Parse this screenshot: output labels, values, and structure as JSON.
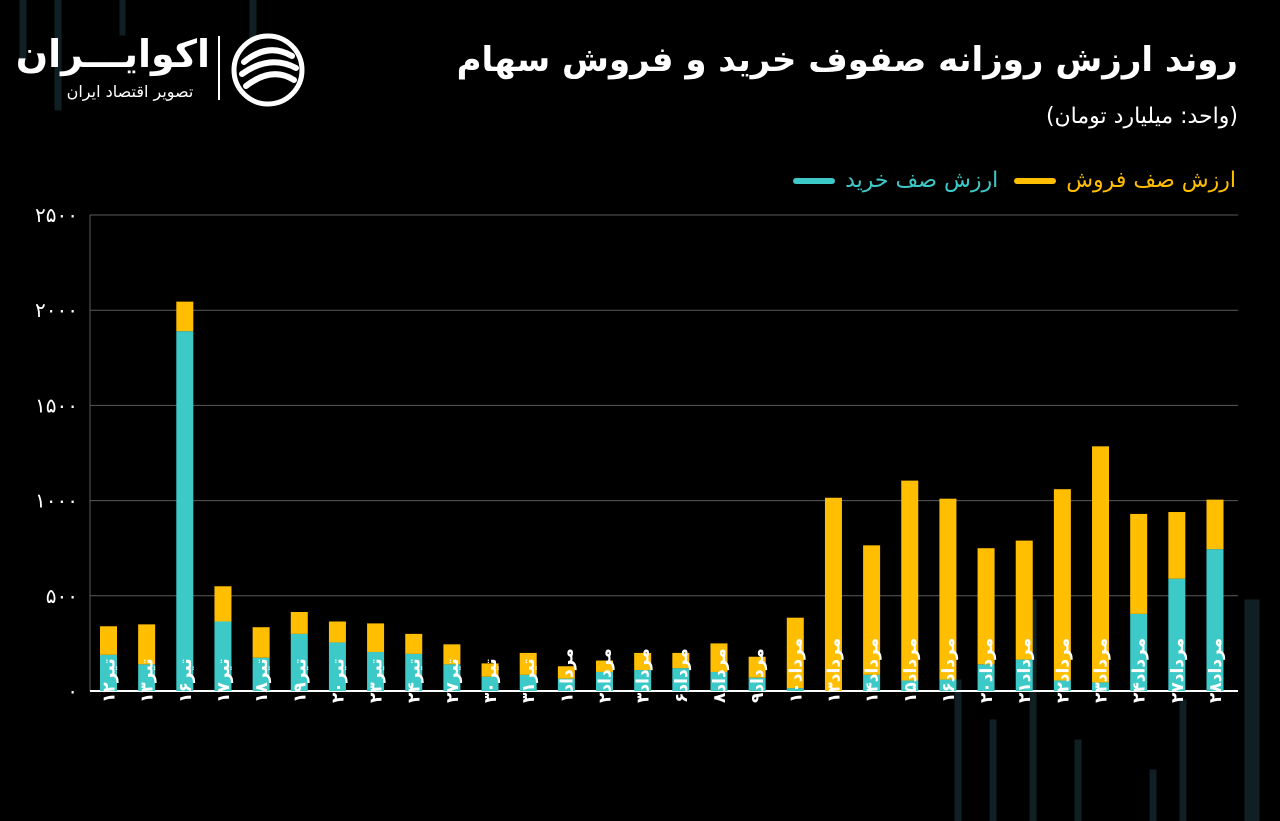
{
  "header": {
    "title": "روند ارزش روزانه صفوف خرید و فروش سهام",
    "unit": "(واحد: میلیارد تومان)"
  },
  "logo": {
    "name": "اکوایـــران",
    "tagline": "تصویر اقتصاد ایران",
    "icon": "ecoiran-logo-icon"
  },
  "colors": {
    "background": "#000000",
    "buy": "#3ec9c9",
    "sell": "#ffbf00",
    "grid": "#5a5a5a",
    "text": "#ffffff"
  },
  "legend": {
    "buy_label": "ارزش صف خرید",
    "sell_label": "ارزش صف فروش"
  },
  "chart_data": {
    "type": "bar",
    "stacked": true,
    "ylim": [
      0,
      2500
    ],
    "yticks": [
      "۰",
      "۵۰۰",
      "۱۰۰۰",
      "۱۵۰۰",
      "۲۰۰۰",
      "۲۵۰۰"
    ],
    "ytick_values": [
      0,
      500,
      1000,
      1500,
      2000,
      2500
    ],
    "grid": true,
    "legend_position": "top-right",
    "categories": [
      "تیر۱۲",
      "تیر۱۳",
      "تیر۱۶",
      "تیر۱۷",
      "تیر۱۸",
      "تیر۱۹",
      "تیر۲۰",
      "تیر۲۳",
      "تیر۲۴",
      "تیر۲۷",
      "تیر۳۰",
      "تیر۳۱",
      "مرداد۱",
      "مرداد۲",
      "مرداد۳",
      "مرداد۶",
      "مرداد۸",
      "مرداد۹",
      "مرداد۱۰",
      "مرداد۱۳",
      "مرداد۱۴",
      "مرداد۱۵",
      "مرداد۱۶",
      "مرداد۲۰",
      "مرداد۲۱",
      "مرداد۲۲",
      "مرداد۲۳",
      "مرداد۲۴",
      "مرداد۲۷",
      "مرداد۲۸"
    ],
    "series": [
      {
        "name": "ارزش صف خرید",
        "values": [
          190,
          140,
          1890,
          365,
          175,
          300,
          255,
          205,
          195,
          140,
          75,
          85,
          65,
          100,
          110,
          120,
          100,
          70,
          15,
          0,
          85,
          55,
          60,
          140,
          165,
          55,
          45,
          405,
          590,
          745
        ]
      },
      {
        "name": "ارزش صف فروش",
        "values": [
          150,
          210,
          155,
          185,
          160,
          115,
          110,
          150,
          105,
          105,
          70,
          115,
          65,
          60,
          90,
          80,
          150,
          110,
          370,
          1015,
          680,
          1050,
          950,
          610,
          625,
          1005,
          1240,
          525,
          350,
          260
        ]
      }
    ]
  }
}
